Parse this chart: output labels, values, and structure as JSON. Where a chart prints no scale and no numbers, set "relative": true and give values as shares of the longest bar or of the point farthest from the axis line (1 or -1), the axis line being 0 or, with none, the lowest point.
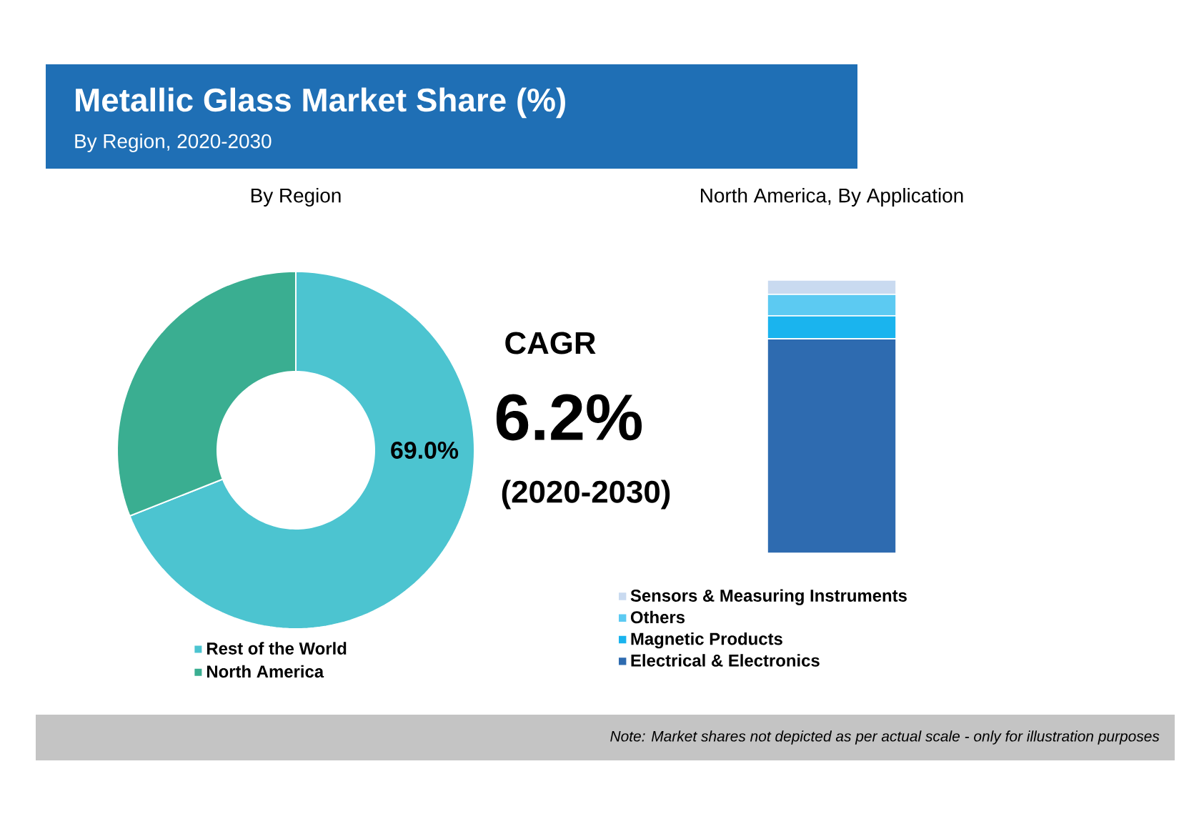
{
  "chart_data": [
    {
      "type": "other",
      "title": "Metallic Glass Market Share (%)",
      "subtitle": "By Region, 2020-2030",
      "annotations": [
        "CAGR",
        "6.2%",
        "(2020-2030)",
        "Note: Market shares not depicted as per actual scale - only for illustration purposes"
      ]
    },
    {
      "type": "donut",
      "title": "By Region",
      "categories": [
        "Rest of the World",
        "North America"
      ],
      "values": [
        69.0,
        31.0
      ],
      "colors": [
        "#4cc4d0",
        "#3aae91"
      ],
      "value_labels": [
        "69.0%",
        null
      ],
      "legend": "bottom left"
    },
    {
      "type": "bar",
      "stacked": true,
      "relative": true,
      "title": "North America, By Application",
      "categories": [
        null
      ],
      "legend": "bottom",
      "series": [
        {
          "name": "Electrical & Electronics",
          "color": "#2e6bb0",
          "values": [
            0.785
          ]
        },
        {
          "name": "Magnetic Products",
          "color": "#1ab4ee",
          "values": [
            0.084
          ]
        },
        {
          "name": "Others",
          "color": "#5ccaf2",
          "values": [
            0.079
          ]
        },
        {
          "name": "Sensors & Measuring Instruments",
          "color": "#c9daf0",
          "values": [
            0.052
          ]
        }
      ]
    }
  ]
}
